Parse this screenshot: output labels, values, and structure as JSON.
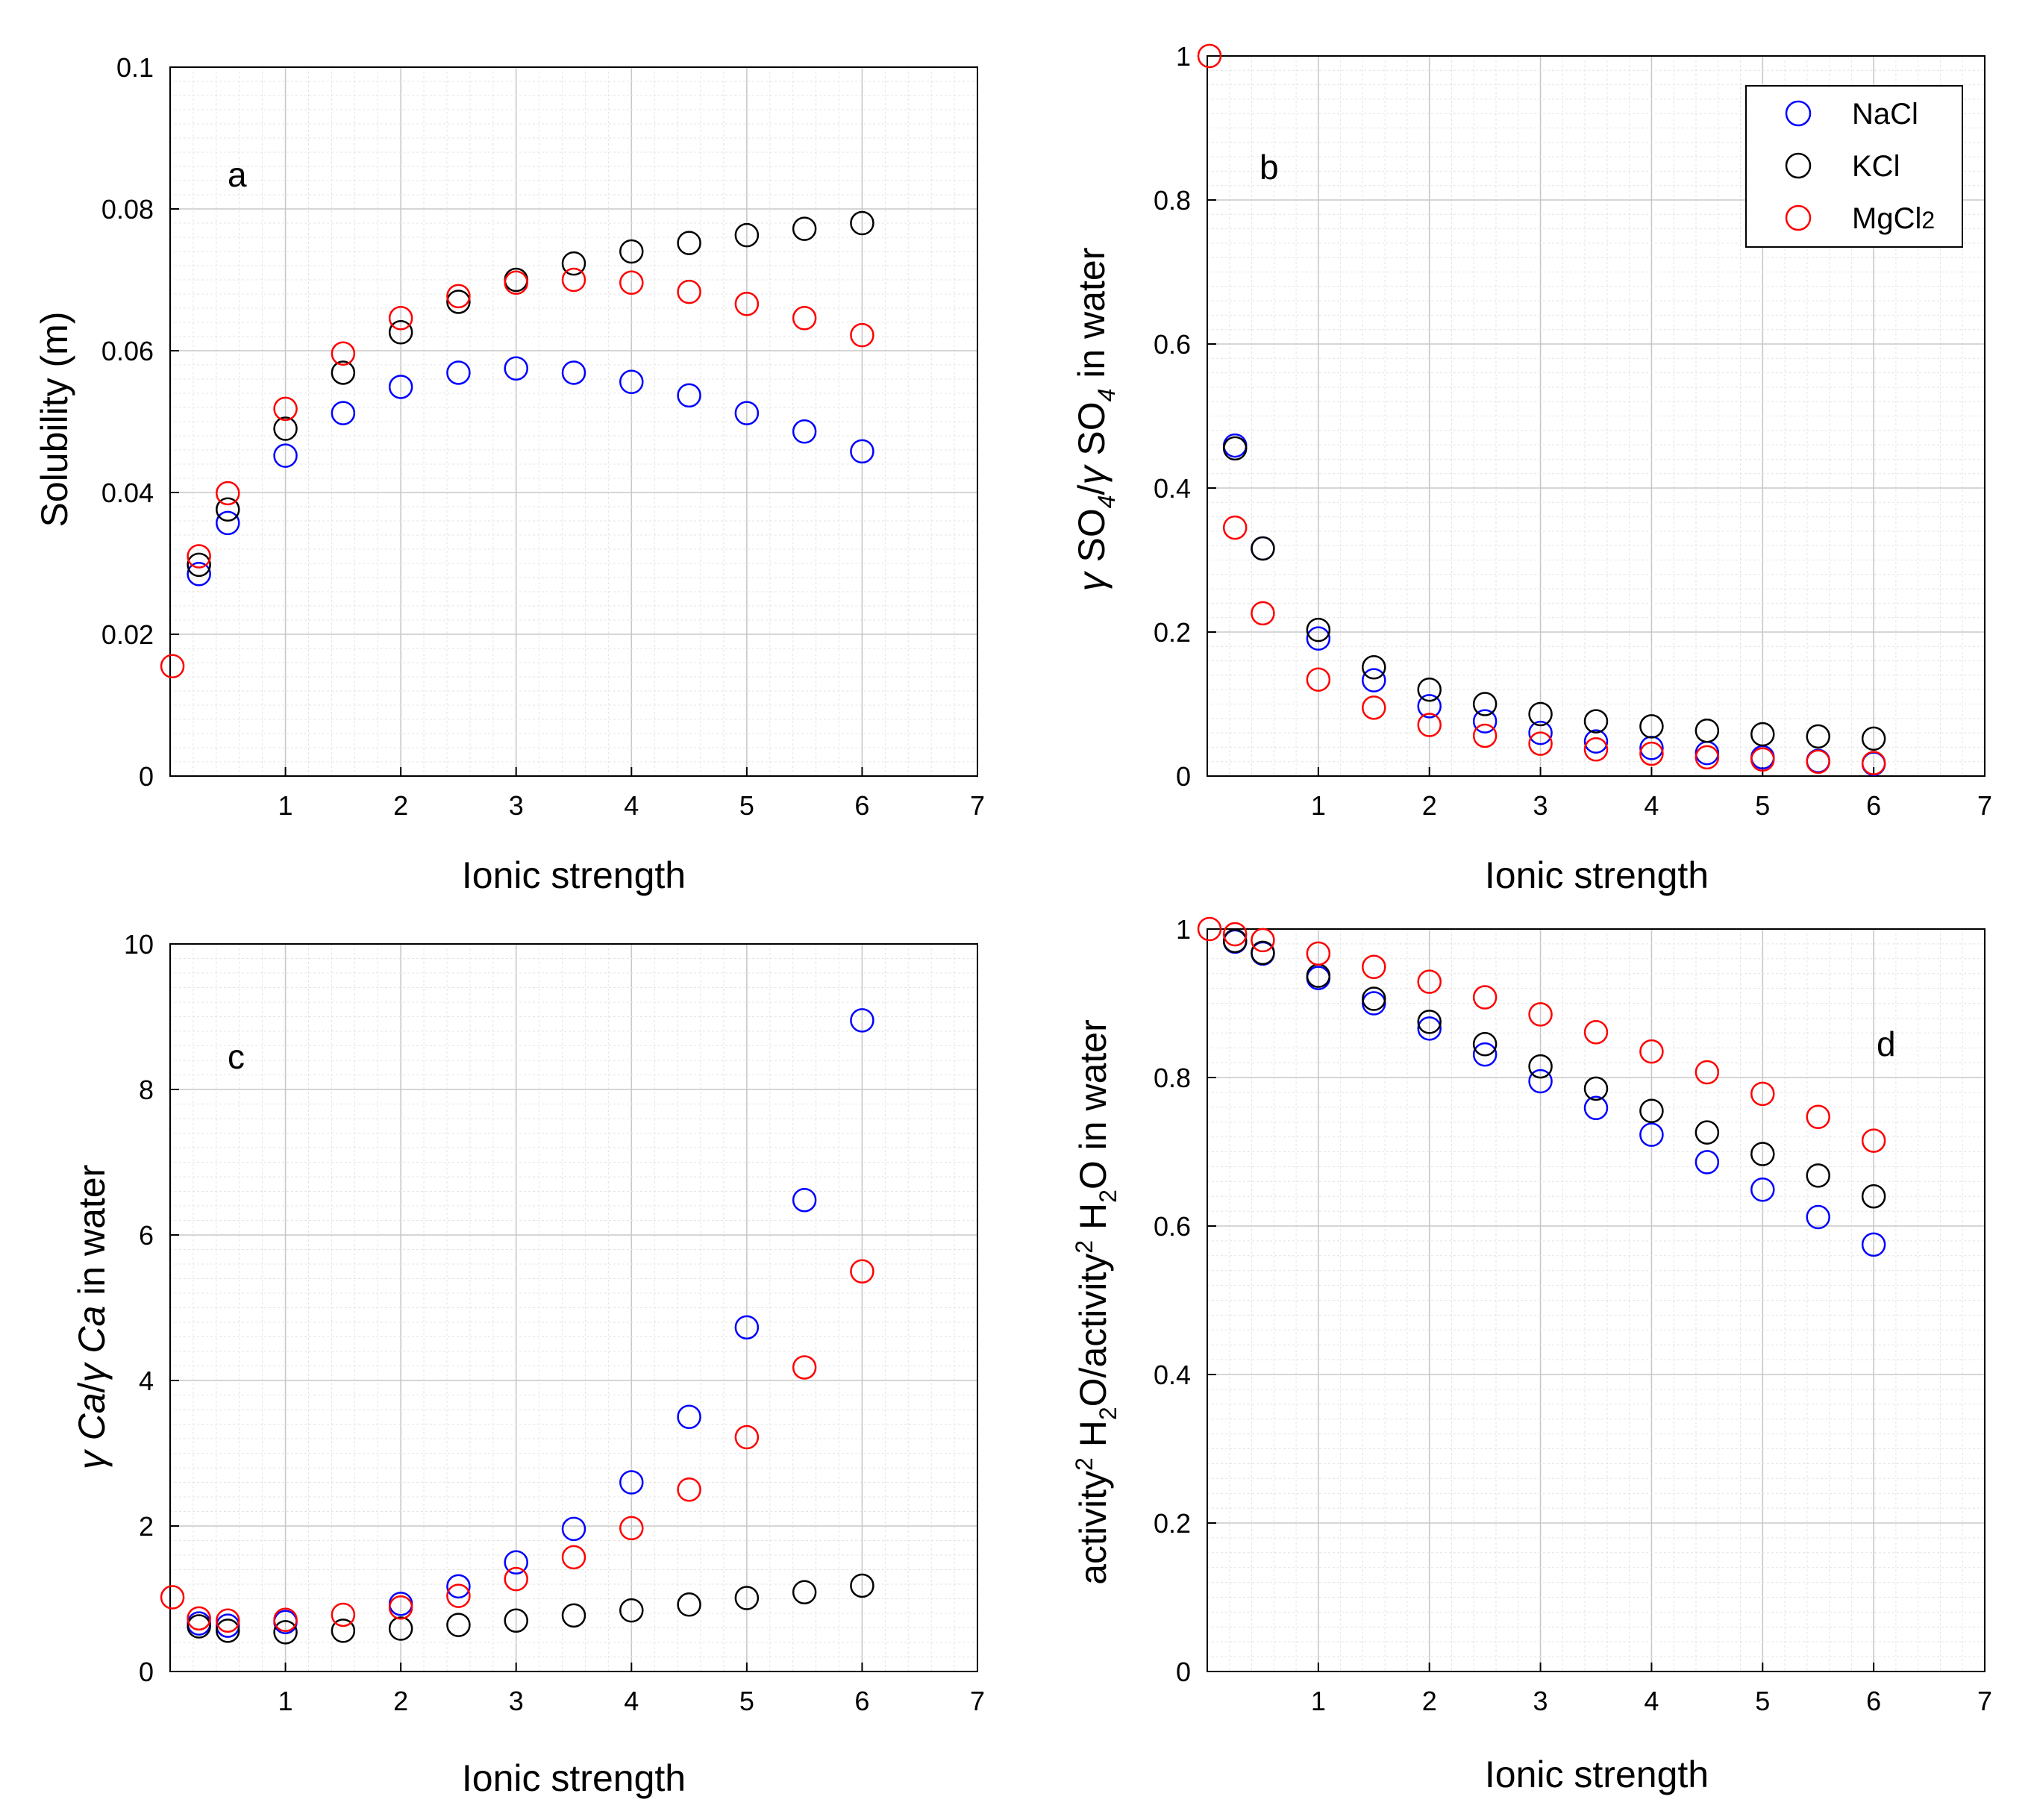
{
  "chart_data": [
    {
      "id": "a",
      "type": "scatter",
      "title": "a",
      "xlabel": "Ionic strength",
      "ylabel": "Solubility (m)",
      "xlim": [
        0,
        7
      ],
      "ylim": [
        0,
        0.1
      ],
      "xticks": [
        1,
        2,
        3,
        4,
        5,
        6,
        7
      ],
      "xtick_labels": [
        "1",
        "2",
        "3",
        "4",
        "5",
        "6",
        "7"
      ],
      "yticks": [
        0,
        0.02,
        0.04,
        0.06,
        0.08,
        0.1
      ],
      "ytick_labels": [
        "0",
        "0.02",
        "0.04",
        "0.06",
        "0.08",
        "0.1"
      ],
      "grid": true,
      "series": [
        {
          "name": "NaCl",
          "color": "#0000ff",
          "x": [
            0.25,
            0.5,
            1,
            1.5,
            2,
            2.5,
            3,
            3.5,
            4,
            4.5,
            5,
            5.5,
            6
          ],
          "y": [
            0.0285,
            0.0357,
            0.0452,
            0.0512,
            0.0549,
            0.0569,
            0.0575,
            0.0569,
            0.0556,
            0.0537,
            0.0512,
            0.0486,
            0.0458
          ]
        },
        {
          "name": "KCl",
          "color": "#000000",
          "x": [
            0.25,
            0.5,
            1,
            1.5,
            2,
            2.5,
            3,
            3.5,
            4,
            4.5,
            5,
            5.5,
            6
          ],
          "y": [
            0.0298,
            0.0376,
            0.049,
            0.0569,
            0.0626,
            0.0669,
            0.07,
            0.0723,
            0.074,
            0.0752,
            0.0763,
            0.0772,
            0.078
          ]
        },
        {
          "name": "MgCl2",
          "color": "#ff0000",
          "x": [
            0.02,
            0.25,
            0.5,
            1,
            1.5,
            2,
            2.5,
            3,
            3.5,
            4,
            4.5,
            5,
            5.5,
            6
          ],
          "y": [
            0.0155,
            0.031,
            0.0399,
            0.0518,
            0.0596,
            0.0646,
            0.0677,
            0.0696,
            0.07,
            0.0696,
            0.0683,
            0.0666,
            0.0646,
            0.0622
          ]
        }
      ]
    },
    {
      "id": "b",
      "type": "scatter",
      "title": "b",
      "xlabel": "Ionic strength",
      "ylabel": "γ SO4/γ SO4 in water",
      "ylabel_parts": {
        "gamma": "γ",
        "so": "SO",
        "sub": "4",
        "slash": "/",
        "in_water": " in water"
      },
      "xlim": [
        0,
        7
      ],
      "ylim": [
        0,
        1
      ],
      "xticks": [
        1,
        2,
        3,
        4,
        5,
        6,
        7
      ],
      "xtick_labels": [
        "1",
        "2",
        "3",
        "4",
        "5",
        "6",
        "7"
      ],
      "yticks": [
        0,
        0.2,
        0.4,
        0.6,
        0.8,
        1
      ],
      "ytick_labels": [
        "0",
        "0.2",
        "0.4",
        "0.6",
        "0.8",
        "1"
      ],
      "grid": true,
      "legend": {
        "position": "top-right",
        "entries": [
          "NaCl",
          "KCl",
          "MgCl2"
        ],
        "labels": [
          "NaCl",
          "KCl",
          "MgCl"
        ],
        "label_sub": [
          "",
          "",
          "2"
        ]
      },
      "series": [
        {
          "name": "NaCl",
          "color": "#0000ff",
          "x": [
            0.25,
            0.5,
            1,
            1.5,
            2,
            2.5,
            3,
            3.5,
            4,
            4.5,
            5,
            5.5,
            6
          ],
          "y": [
            0.459,
            0.316,
            0.191,
            0.133,
            0.097,
            0.076,
            0.06,
            0.048,
            0.039,
            0.032,
            0.026,
            0.021,
            0.017
          ]
        },
        {
          "name": "KCl",
          "color": "#000000",
          "x": [
            0.25,
            0.5,
            1,
            1.5,
            2,
            2.5,
            3,
            3.5,
            4,
            4.5,
            5,
            5.5,
            6
          ],
          "y": [
            0.455,
            0.316,
            0.203,
            0.151,
            0.12,
            0.1,
            0.086,
            0.076,
            0.069,
            0.063,
            0.058,
            0.055,
            0.052
          ]
        },
        {
          "name": "MgCl2",
          "color": "#ff0000",
          "x": [
            0.02,
            0.25,
            0.5,
            1,
            1.5,
            2,
            2.5,
            3,
            3.5,
            4,
            4.5,
            5,
            5.5,
            6
          ],
          "y": [
            1.0,
            0.345,
            0.226,
            0.134,
            0.095,
            0.071,
            0.056,
            0.045,
            0.037,
            0.031,
            0.026,
            0.023,
            0.02,
            0.018
          ]
        }
      ]
    },
    {
      "id": "c",
      "type": "scatter",
      "title": "c",
      "xlabel": "Ionic strength",
      "ylabel": "γ Ca/γ Ca in water",
      "ylabel_parts": {
        "gamma": "γ",
        "ca": "Ca",
        "slash": "/",
        "in_water": " in water"
      },
      "xlim": [
        0,
        7
      ],
      "ylim": [
        0,
        10
      ],
      "xticks": [
        1,
        2,
        3,
        4,
        5,
        6,
        7
      ],
      "xtick_labels": [
        "1",
        "2",
        "3",
        "4",
        "5",
        "6",
        "7"
      ],
      "yticks": [
        0,
        2,
        4,
        6,
        8,
        10
      ],
      "ytick_labels": [
        "0",
        "2",
        "4",
        "6",
        "8",
        "10"
      ],
      "grid": true,
      "series": [
        {
          "name": "NaCl",
          "color": "#0000ff",
          "x": [
            0.25,
            0.5,
            1,
            2,
            2.5,
            3,
            3.5,
            4,
            4.5,
            5,
            5.5,
            6
          ],
          "y": [
            0.66,
            0.63,
            0.68,
            0.93,
            1.17,
            1.5,
            1.96,
            2.6,
            3.5,
            4.73,
            6.48,
            8.95
          ]
        },
        {
          "name": "KCl",
          "color": "#000000",
          "x": [
            0.25,
            0.5,
            1,
            1.5,
            2,
            2.5,
            3,
            3.5,
            4,
            4.5,
            5,
            5.5,
            6
          ],
          "y": [
            0.62,
            0.56,
            0.54,
            0.56,
            0.59,
            0.64,
            0.7,
            0.77,
            0.84,
            0.92,
            1.01,
            1.09,
            1.18
          ]
        },
        {
          "name": "MgCl2",
          "color": "#ff0000",
          "x": [
            0.02,
            0.25,
            0.5,
            1,
            1.5,
            2,
            2.5,
            3,
            3.5,
            4,
            4.5,
            5,
            5.5,
            6
          ],
          "y": [
            1.02,
            0.73,
            0.7,
            0.71,
            0.78,
            0.88,
            1.04,
            1.27,
            1.57,
            1.97,
            2.5,
            3.22,
            4.18,
            5.5
          ]
        }
      ]
    },
    {
      "id": "d",
      "type": "scatter",
      "title": "d",
      "xlabel": "Ionic strength",
      "ylabel": "activity2 H2O/activity2 H2O in water",
      "ylabel_parts": {
        "activity": "activity",
        "sup": "2",
        "h": " H",
        "sub": "2",
        "o": "O",
        "slash": "/",
        "in_water": " in water"
      },
      "xlim": [
        0,
        7
      ],
      "ylim": [
        0,
        1
      ],
      "xticks": [
        1,
        2,
        3,
        4,
        5,
        6,
        7
      ],
      "xtick_labels": [
        "1",
        "2",
        "3",
        "4",
        "5",
        "6",
        "7"
      ],
      "yticks": [
        0,
        0.2,
        0.4,
        0.6,
        0.8,
        1
      ],
      "ytick_labels": [
        "0",
        "0.2",
        "0.4",
        "0.6",
        "0.8",
        "1"
      ],
      "grid": true,
      "series": [
        {
          "name": "NaCl",
          "color": "#0000ff",
          "x": [
            0.25,
            0.5,
            1,
            1.5,
            2,
            2.5,
            3,
            3.5,
            4,
            4.5,
            5,
            5.5,
            6
          ],
          "y": [
            0.983,
            0.967,
            0.934,
            0.9,
            0.866,
            0.831,
            0.795,
            0.759,
            0.723,
            0.686,
            0.649,
            0.612,
            0.575
          ]
        },
        {
          "name": "KCl",
          "color": "#000000",
          "x": [
            0.25,
            0.5,
            1,
            1.5,
            2,
            2.5,
            3,
            3.5,
            4,
            4.5,
            5,
            5.5,
            6
          ],
          "y": [
            0.984,
            0.968,
            0.937,
            0.906,
            0.875,
            0.845,
            0.815,
            0.785,
            0.755,
            0.726,
            0.697,
            0.668,
            0.64
          ]
        },
        {
          "name": "MgCl2",
          "color": "#ff0000",
          "x": [
            0.02,
            0.25,
            0.5,
            1,
            1.5,
            2,
            2.5,
            3,
            3.5,
            4,
            4.5,
            5,
            5.5,
            6
          ],
          "y": [
            1.0,
            0.993,
            0.985,
            0.967,
            0.949,
            0.929,
            0.908,
            0.885,
            0.861,
            0.835,
            0.807,
            0.778,
            0.747,
            0.715
          ]
        }
      ]
    }
  ]
}
